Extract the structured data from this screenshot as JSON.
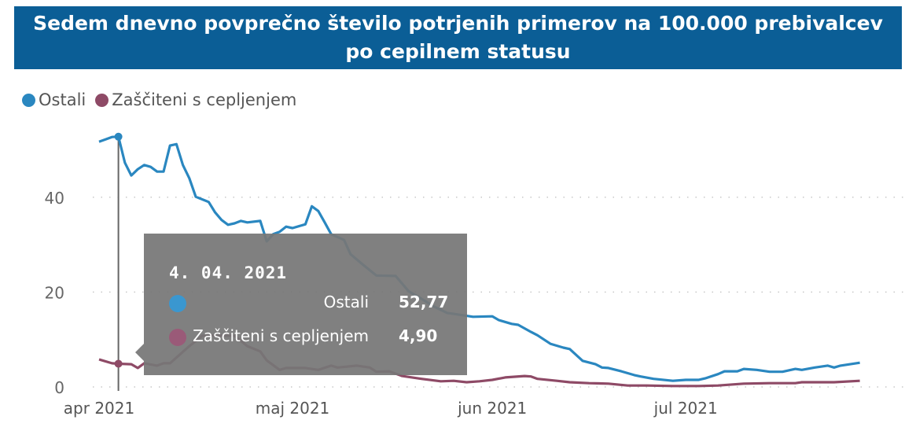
{
  "title": "Sedem dnevno povprečno število potrjenih primerov na 100.000 prebivalcev po cepilnem statusu",
  "chart_data": {
    "type": "line",
    "title": "Sedem dnevno povprečno število potrjenih primerov na 100.000 prebivalcev po cepilnem statusu",
    "xlabel": "",
    "ylabel": "",
    "ylim": [
      0,
      54
    ],
    "xlim": [
      "2021-04-01",
      "2021-07-31"
    ],
    "y_ticks": [
      "0",
      "20",
      "40"
    ],
    "x_ticks": [
      {
        "date": "2021-04-01",
        "label": "apr 2021"
      },
      {
        "date": "2021-05-01",
        "label": "maj 2021"
      },
      {
        "date": "2021-06-01",
        "label": "jun 2021"
      },
      {
        "date": "2021-07-01",
        "label": "jul 2021"
      }
    ],
    "grid": "horizontal dotted",
    "legend": "top-left",
    "series": [
      {
        "name": "Ostali",
        "color": "#2a87c0",
        "points": [
          [
            "2021-04-01",
            51.7
          ],
          [
            "2021-04-02",
            52.2
          ],
          [
            "2021-04-03",
            52.7
          ],
          [
            "2021-04-04",
            52.77
          ],
          [
            "2021-04-05",
            47.3
          ],
          [
            "2021-04-06",
            44.6
          ],
          [
            "2021-04-07",
            45.9
          ],
          [
            "2021-04-08",
            46.8
          ],
          [
            "2021-04-09",
            46.4
          ],
          [
            "2021-04-10",
            45.4
          ],
          [
            "2021-04-11",
            45.4
          ],
          [
            "2021-04-12",
            50.9
          ],
          [
            "2021-04-13",
            51.2
          ],
          [
            "2021-04-14",
            46.8
          ],
          [
            "2021-04-15",
            44.0
          ],
          [
            "2021-04-16",
            40.1
          ],
          [
            "2021-04-18",
            39.0
          ],
          [
            "2021-04-19",
            36.8
          ],
          [
            "2021-04-20",
            35.2
          ],
          [
            "2021-04-21",
            34.2
          ],
          [
            "2021-04-22",
            34.5
          ],
          [
            "2021-04-23",
            35.0
          ],
          [
            "2021-04-24",
            34.7
          ],
          [
            "2021-04-26",
            35.0
          ],
          [
            "2021-04-27",
            30.7
          ],
          [
            "2021-04-28",
            32.2
          ],
          [
            "2021-04-29",
            32.7
          ],
          [
            "2021-04-30",
            33.8
          ],
          [
            "2021-05-01",
            33.5
          ],
          [
            "2021-05-03",
            34.3
          ],
          [
            "2021-05-04",
            38.1
          ],
          [
            "2021-05-05",
            37.1
          ],
          [
            "2021-05-06",
            34.7
          ],
          [
            "2021-05-07",
            32.2
          ],
          [
            "2021-05-09",
            31.0
          ],
          [
            "2021-05-10",
            28.0
          ],
          [
            "2021-05-12",
            25.7
          ],
          [
            "2021-05-14",
            23.5
          ],
          [
            "2021-05-17",
            23.4
          ],
          [
            "2021-05-19",
            20.2
          ],
          [
            "2021-05-21",
            18.6
          ],
          [
            "2021-05-23",
            16.9
          ],
          [
            "2021-05-25",
            15.6
          ],
          [
            "2021-05-26",
            15.4
          ],
          [
            "2021-05-29",
            14.8
          ],
          [
            "2021-06-01",
            14.9
          ],
          [
            "2021-06-02",
            14.1
          ],
          [
            "2021-06-04",
            13.3
          ],
          [
            "2021-06-05",
            13.1
          ],
          [
            "2021-06-07",
            11.6
          ],
          [
            "2021-06-08",
            10.9
          ],
          [
            "2021-06-10",
            9.1
          ],
          [
            "2021-06-12",
            8.3
          ],
          [
            "2021-06-13",
            8.0
          ],
          [
            "2021-06-15",
            5.5
          ],
          [
            "2021-06-17",
            4.8
          ],
          [
            "2021-06-18",
            4.1
          ],
          [
            "2021-06-19",
            4.0
          ],
          [
            "2021-06-21",
            3.3
          ],
          [
            "2021-06-23",
            2.5
          ],
          [
            "2021-06-24",
            2.2
          ],
          [
            "2021-06-26",
            1.7
          ],
          [
            "2021-06-29",
            1.3
          ],
          [
            "2021-07-01",
            1.5
          ],
          [
            "2021-07-03",
            1.5
          ],
          [
            "2021-07-04",
            1.8
          ],
          [
            "2021-07-06",
            2.7
          ],
          [
            "2021-07-07",
            3.3
          ],
          [
            "2021-07-09",
            3.3
          ],
          [
            "2021-07-10",
            3.8
          ],
          [
            "2021-07-12",
            3.6
          ],
          [
            "2021-07-14",
            3.2
          ],
          [
            "2021-07-16",
            3.2
          ],
          [
            "2021-07-18",
            3.8
          ],
          [
            "2021-07-19",
            3.6
          ],
          [
            "2021-07-21",
            4.1
          ],
          [
            "2021-07-23",
            4.5
          ],
          [
            "2021-07-24",
            4.1
          ],
          [
            "2021-07-25",
            4.5
          ],
          [
            "2021-07-28",
            5.1
          ]
        ]
      },
      {
        "name": "Zaščiteni s cepljenjem",
        "color": "#8e4a66",
        "points": [
          [
            "2021-04-01",
            5.8
          ],
          [
            "2021-04-03",
            5.0
          ],
          [
            "2021-04-04",
            4.9
          ],
          [
            "2021-04-06",
            4.8
          ],
          [
            "2021-04-07",
            4.0
          ],
          [
            "2021-04-08",
            5.0
          ],
          [
            "2021-04-10",
            4.5
          ],
          [
            "2021-04-11",
            5.0
          ],
          [
            "2021-04-12",
            5.0
          ],
          [
            "2021-04-15",
            8.6
          ],
          [
            "2021-04-17",
            10.8
          ],
          [
            "2021-04-22",
            10.8
          ],
          [
            "2021-04-24",
            8.6
          ],
          [
            "2021-04-26",
            7.5
          ],
          [
            "2021-04-27",
            5.6
          ],
          [
            "2021-04-29",
            3.6
          ],
          [
            "2021-04-30",
            4.0
          ],
          [
            "2021-05-03",
            4.0
          ],
          [
            "2021-05-05",
            3.6
          ],
          [
            "2021-05-07",
            4.5
          ],
          [
            "2021-05-08",
            4.1
          ],
          [
            "2021-05-11",
            4.5
          ],
          [
            "2021-05-13",
            4.1
          ],
          [
            "2021-05-14",
            3.2
          ],
          [
            "2021-05-16",
            3.3
          ],
          [
            "2021-05-18",
            2.3
          ],
          [
            "2021-05-21",
            1.7
          ],
          [
            "2021-05-24",
            1.2
          ],
          [
            "2021-05-26",
            1.3
          ],
          [
            "2021-05-28",
            1.0
          ],
          [
            "2021-05-30",
            1.2
          ],
          [
            "2021-06-01",
            1.5
          ],
          [
            "2021-06-03",
            2.0
          ],
          [
            "2021-06-06",
            2.3
          ],
          [
            "2021-06-07",
            2.2
          ],
          [
            "2021-06-08",
            1.7
          ],
          [
            "2021-06-11",
            1.3
          ],
          [
            "2021-06-13",
            1.0
          ],
          [
            "2021-06-16",
            0.8
          ],
          [
            "2021-06-19",
            0.7
          ],
          [
            "2021-06-22",
            0.3
          ],
          [
            "2021-06-25",
            0.3
          ],
          [
            "2021-06-29",
            0.2
          ],
          [
            "2021-07-03",
            0.2
          ],
          [
            "2021-07-06",
            0.3
          ],
          [
            "2021-07-10",
            0.7
          ],
          [
            "2021-07-14",
            0.8
          ],
          [
            "2021-07-18",
            0.8
          ],
          [
            "2021-07-19",
            1.0
          ],
          [
            "2021-07-24",
            1.0
          ],
          [
            "2021-07-28",
            1.3
          ]
        ]
      }
    ],
    "tooltip": {
      "date": "4. 04. 2021",
      "hover_date": "2021-04-04",
      "rows": [
        {
          "name": "Ostali",
          "value": "52,77",
          "color": "#3a97d0"
        },
        {
          "name": "Zaščiteni s cepljenjem",
          "value": "4,90",
          "color": "#9a5a78"
        }
      ]
    }
  }
}
